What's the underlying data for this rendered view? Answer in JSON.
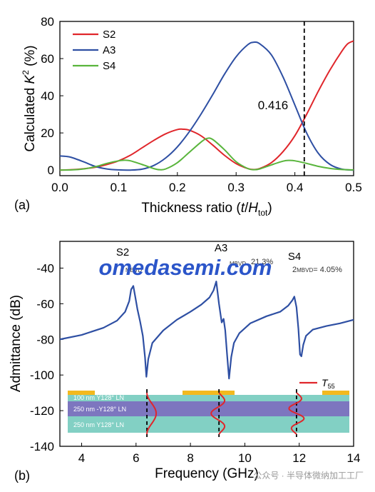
{
  "chart_data": [
    {
      "type": "line",
      "panel_label": "(a)",
      "title": "",
      "xlabel_prefix": "Thickness ratio (",
      "xlabel_italic": "t",
      "xlabel_slash": "/",
      "xlabel_italic2": "H",
      "xlabel_sub": "tot",
      "xlabel_suffix": ")",
      "ylabel_prefix": "Calculated ",
      "ylabel_italic": "K",
      "ylabel_sup": "2",
      "ylabel_suffix": " (%)",
      "xlim": [
        0,
        0.5
      ],
      "ylim": [
        -3,
        80
      ],
      "xticks": [
        "0.0",
        "0.1",
        "0.2",
        "0.3",
        "0.4",
        "0.5"
      ],
      "xtick_values": [
        0,
        0.1,
        0.2,
        0.3,
        0.4,
        0.5
      ],
      "yticks": [
        "0",
        "20",
        "40",
        "60",
        "80"
      ],
      "ytick_values": [
        0,
        20,
        40,
        60,
        80
      ],
      "legend_position": "top-left",
      "vline": {
        "x": 0.416,
        "label": "0.416"
      },
      "series": [
        {
          "name": "S2",
          "color": "#e0262b",
          "x": [
            0,
            0.02,
            0.04,
            0.06,
            0.08,
            0.1,
            0.12,
            0.14,
            0.16,
            0.18,
            0.2,
            0.21,
            0.22,
            0.24,
            0.26,
            0.28,
            0.3,
            0.32,
            0.33,
            0.34,
            0.36,
            0.38,
            0.4,
            0.42,
            0.44,
            0.46,
            0.48,
            0.49,
            0.5
          ],
          "y": [
            0,
            0.2,
            0.7,
            1.5,
            3.0,
            5.0,
            8.0,
            12.0,
            16.0,
            19.5,
            21.8,
            22.0,
            21.5,
            18.5,
            13.5,
            8.0,
            3.5,
            0.8,
            0.3,
            0.8,
            4.0,
            10.0,
            18.5,
            30.0,
            42.5,
            54.0,
            64.0,
            68.0,
            69.5
          ]
        },
        {
          "name": "A3",
          "color": "#2e4fa3",
          "x": [
            0,
            0.01,
            0.02,
            0.04,
            0.06,
            0.08,
            0.1,
            0.12,
            0.14,
            0.16,
            0.18,
            0.2,
            0.22,
            0.24,
            0.26,
            0.28,
            0.3,
            0.32,
            0.33,
            0.34,
            0.36,
            0.38,
            0.4,
            0.42,
            0.44,
            0.46,
            0.48,
            0.5
          ],
          "y": [
            7.6,
            7.4,
            6.8,
            4.5,
            2.0,
            0.6,
            0.1,
            0.0,
            0.5,
            2.5,
            6.5,
            12.5,
            20.5,
            30.0,
            40.5,
            51.5,
            61.0,
            67.5,
            68.8,
            68.0,
            62.0,
            50.0,
            35.0,
            20.0,
            9.0,
            3.0,
            0.5,
            0.0
          ]
        },
        {
          "name": "S4",
          "color": "#59b53c",
          "x": [
            0,
            0.02,
            0.04,
            0.06,
            0.08,
            0.1,
            0.11,
            0.12,
            0.14,
            0.16,
            0.17,
            0.18,
            0.2,
            0.22,
            0.24,
            0.25,
            0.26,
            0.28,
            0.3,
            0.32,
            0.33,
            0.34,
            0.36,
            0.38,
            0.39,
            0.4,
            0.42,
            0.44,
            0.46,
            0.48,
            0.5
          ],
          "y": [
            0,
            0.1,
            0.6,
            1.8,
            3.6,
            5.0,
            5.3,
            5.0,
            3.0,
            0.8,
            0.2,
            0.6,
            4.0,
            9.5,
            15.0,
            17.0,
            16.5,
            11.0,
            4.5,
            0.8,
            0.2,
            0.6,
            2.8,
            4.8,
            5.2,
            5.0,
            3.6,
            2.0,
            0.9,
            0.3,
            0.1
          ]
        }
      ]
    },
    {
      "type": "line",
      "panel_label": "(b)",
      "title": "",
      "xlabel": "Frequency (GHz)",
      "ylabel": "Admittance (dB)",
      "xlim": [
        3.2,
        14
      ],
      "ylim": [
        -140,
        -25
      ],
      "xticks": [
        "4",
        "6",
        "8",
        "10",
        "12",
        "14"
      ],
      "xtick_values": [
        4,
        6,
        8,
        10,
        12,
        14
      ],
      "yticks": [
        "-40",
        "-60",
        "-80",
        "-100",
        "-120",
        "-140"
      ],
      "ytick_values": [
        -40,
        -60,
        -80,
        -100,
        -120,
        -140
      ],
      "series": [
        {
          "name": "",
          "color": "#2e4fa3",
          "x": [
            3.2,
            4.0,
            4.8,
            5.3,
            5.6,
            5.75,
            5.82,
            5.9,
            5.97,
            6.05,
            6.15,
            6.25,
            6.33,
            6.38,
            6.45,
            6.6,
            7.0,
            7.5,
            8.0,
            8.4,
            8.7,
            8.85,
            8.95,
            9.05,
            9.15,
            9.22,
            9.28,
            9.35,
            9.42,
            9.5,
            9.6,
            9.8,
            10.2,
            10.8,
            11.3,
            11.6,
            11.75,
            11.82,
            11.9,
            11.97,
            12.03,
            12.08,
            12.15,
            12.25,
            12.5,
            13.0,
            13.5,
            14.0
          ],
          "y": [
            -80,
            -77.5,
            -73.5,
            -69.5,
            -64.5,
            -58.5,
            -52,
            -50,
            -56,
            -63,
            -70,
            -78,
            -90,
            -101,
            -91,
            -82,
            -75,
            -69,
            -64.5,
            -60.5,
            -56.5,
            -52.5,
            -47.5,
            -60,
            -70.5,
            -68.5,
            -75,
            -89,
            -102,
            -90,
            -82,
            -76.5,
            -71,
            -67,
            -64.5,
            -61,
            -58,
            -56,
            -62,
            -74,
            -88.5,
            -89.5,
            -83,
            -78,
            -74.5,
            -72.5,
            -71,
            -69
          ]
        }
      ],
      "annotations": [
        {
          "label": "S2",
          "x": 5.8,
          "y": -33
        },
        {
          "label": "A3",
          "x": 8.7,
          "y": -31
        },
        {
          "label": "S4",
          "x": 11.8,
          "y": -35
        }
      ],
      "partial_annotations": [
        "MBVD",
        "21.3%",
        "MBVD",
        "K",
        "2",
        "MBVD",
        "= 4.05%"
      ],
      "inset": {
        "legend_label": "T",
        "legend_sub": "55",
        "legend_color": "#e0262b",
        "layers": [
          {
            "label": "100 nm  Y128° LN",
            "color": "#82d0c4"
          },
          {
            "label": "250 nm -Y128° LN",
            "color": "#7d76bf"
          },
          {
            "label": "250 nm  Y128° LN",
            "color": "#82d0c4"
          }
        ],
        "electrode_color": "#f2b91f",
        "mode_lines_x": [
          6.4,
          9.05,
          11.9
        ]
      }
    }
  ],
  "watermark": "omedasemi.com",
  "footer_watermark": "公众号 · 半导体微纳加工工厂"
}
